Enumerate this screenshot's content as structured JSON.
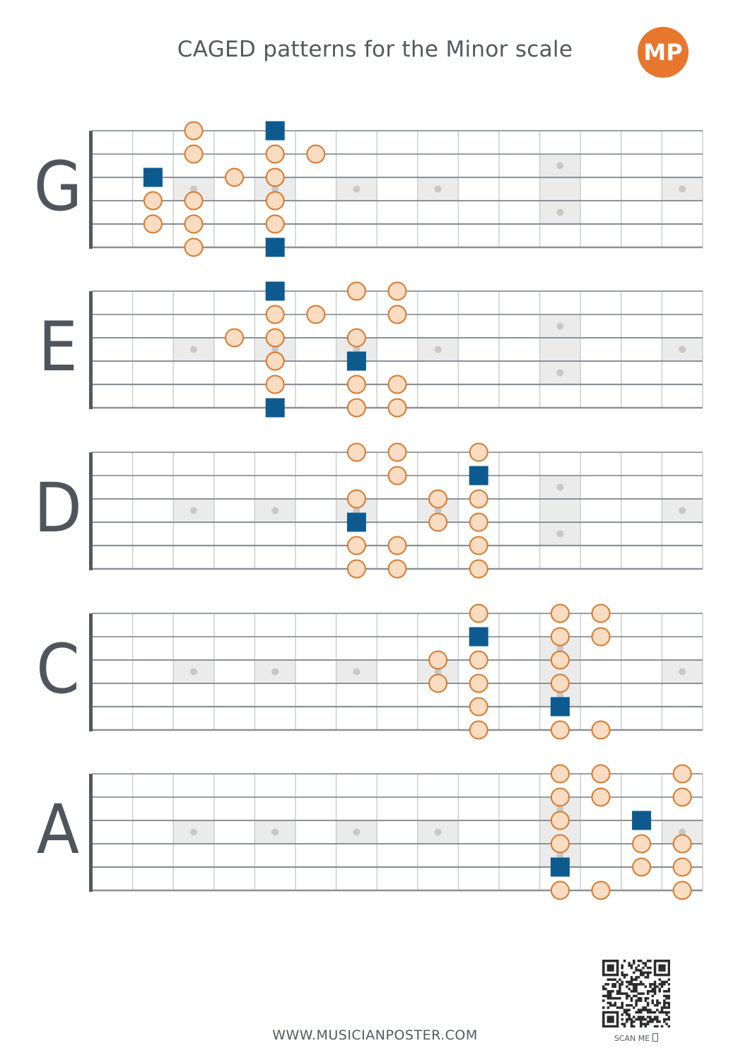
{
  "title": "CAGED patterns for the Minor scale",
  "logo": {
    "text": "MP",
    "color": "#e8762d"
  },
  "colors": {
    "note_fill": "#fadcc2",
    "note_stroke": "#d9782a",
    "root_fill": "#0d5a8f",
    "inlay_bg": "#ebebeb",
    "inlay_dot": "#c8c8c8",
    "string": "#8d9095",
    "fret": "#c9cbce",
    "nut": "#55595e"
  },
  "fretboard": {
    "frets": 15,
    "strings": 6,
    "single_inlays": [
      3,
      5,
      7,
      9,
      15
    ],
    "double_inlay": 12
  },
  "patterns": [
    {
      "shape": "G",
      "notes": [
        {
          "s": 1,
          "f": 3
        },
        {
          "s": 1,
          "f": 5,
          "root": true
        },
        {
          "s": 2,
          "f": 3
        },
        {
          "s": 2,
          "f": 5
        },
        {
          "s": 2,
          "f": 6
        },
        {
          "s": 3,
          "f": 2,
          "root": true
        },
        {
          "s": 3,
          "f": 4
        },
        {
          "s": 3,
          "f": 5
        },
        {
          "s": 4,
          "f": 2
        },
        {
          "s": 4,
          "f": 3
        },
        {
          "s": 4,
          "f": 5
        },
        {
          "s": 5,
          "f": 2
        },
        {
          "s": 5,
          "f": 3
        },
        {
          "s": 5,
          "f": 5
        },
        {
          "s": 6,
          "f": 3
        },
        {
          "s": 6,
          "f": 5,
          "root": true
        }
      ]
    },
    {
      "shape": "E",
      "notes": [
        {
          "s": 1,
          "f": 5,
          "root": true
        },
        {
          "s": 1,
          "f": 7
        },
        {
          "s": 1,
          "f": 8
        },
        {
          "s": 2,
          "f": 5
        },
        {
          "s": 2,
          "f": 6
        },
        {
          "s": 2,
          "f": 8
        },
        {
          "s": 3,
          "f": 4
        },
        {
          "s": 3,
          "f": 5
        },
        {
          "s": 3,
          "f": 7
        },
        {
          "s": 4,
          "f": 5
        },
        {
          "s": 4,
          "f": 7,
          "root": true
        },
        {
          "s": 5,
          "f": 5
        },
        {
          "s": 5,
          "f": 7
        },
        {
          "s": 5,
          "f": 8
        },
        {
          "s": 6,
          "f": 5,
          "root": true
        },
        {
          "s": 6,
          "f": 7
        },
        {
          "s": 6,
          "f": 8
        }
      ]
    },
    {
      "shape": "D",
      "notes": [
        {
          "s": 1,
          "f": 7
        },
        {
          "s": 1,
          "f": 8
        },
        {
          "s": 1,
          "f": 10
        },
        {
          "s": 2,
          "f": 8
        },
        {
          "s": 2,
          "f": 10,
          "root": true
        },
        {
          "s": 3,
          "f": 7
        },
        {
          "s": 3,
          "f": 9
        },
        {
          "s": 3,
          "f": 10
        },
        {
          "s": 4,
          "f": 7,
          "root": true
        },
        {
          "s": 4,
          "f": 9
        },
        {
          "s": 4,
          "f": 10
        },
        {
          "s": 5,
          "f": 7
        },
        {
          "s": 5,
          "f": 8
        },
        {
          "s": 5,
          "f": 10
        },
        {
          "s": 6,
          "f": 7
        },
        {
          "s": 6,
          "f": 8
        },
        {
          "s": 6,
          "f": 10
        }
      ]
    },
    {
      "shape": "C",
      "notes": [
        {
          "s": 1,
          "f": 10
        },
        {
          "s": 1,
          "f": 12
        },
        {
          "s": 1,
          "f": 13
        },
        {
          "s": 2,
          "f": 10,
          "root": true
        },
        {
          "s": 2,
          "f": 12
        },
        {
          "s": 2,
          "f": 13
        },
        {
          "s": 3,
          "f": 9
        },
        {
          "s": 3,
          "f": 10
        },
        {
          "s": 3,
          "f": 12
        },
        {
          "s": 4,
          "f": 9
        },
        {
          "s": 4,
          "f": 10
        },
        {
          "s": 4,
          "f": 12
        },
        {
          "s": 5,
          "f": 10
        },
        {
          "s": 5,
          "f": 12,
          "root": true
        },
        {
          "s": 6,
          "f": 10
        },
        {
          "s": 6,
          "f": 12
        },
        {
          "s": 6,
          "f": 13
        }
      ]
    },
    {
      "shape": "A",
      "notes": [
        {
          "s": 1,
          "f": 12
        },
        {
          "s": 1,
          "f": 13
        },
        {
          "s": 1,
          "f": 15
        },
        {
          "s": 2,
          "f": 12
        },
        {
          "s": 2,
          "f": 13
        },
        {
          "s": 2,
          "f": 15
        },
        {
          "s": 3,
          "f": 12
        },
        {
          "s": 3,
          "f": 14,
          "root": true
        },
        {
          "s": 4,
          "f": 12
        },
        {
          "s": 4,
          "f": 14
        },
        {
          "s": 4,
          "f": 15
        },
        {
          "s": 5,
          "f": 12,
          "root": true
        },
        {
          "s": 5,
          "f": 14
        },
        {
          "s": 5,
          "f": 15
        },
        {
          "s": 6,
          "f": 12
        },
        {
          "s": 6,
          "f": 13
        },
        {
          "s": 6,
          "f": 15
        }
      ]
    }
  ],
  "footer": {
    "website": "WWW.MUSICIANPOSTER.COM",
    "scan_label": "SCAN ME"
  }
}
